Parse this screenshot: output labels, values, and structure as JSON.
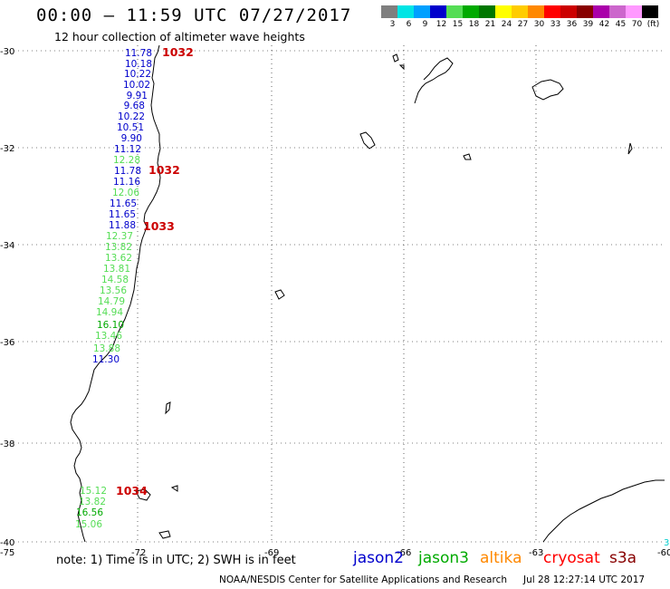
{
  "header": {
    "title": "00:00 – 11:59 UTC 07/27/2017",
    "subtitle": "12 hour collection of altimeter wave heights"
  },
  "colorbar": {
    "labels": [
      "3",
      "6",
      "9",
      "12",
      "15",
      "18",
      "21",
      "24",
      "27",
      "30",
      "33",
      "36",
      "39",
      "42",
      "45",
      "70",
      "(ft)"
    ],
    "colors": [
      "#7f7f7f",
      "#00e5e5",
      "#00a0ff",
      "#0000cc",
      "#55dd55",
      "#00aa00",
      "#007700",
      "#ffff00",
      "#ffcc00",
      "#ff8800",
      "#ff0000",
      "#cc0000",
      "#880000",
      "#aa00aa",
      "#cc66cc",
      "#ff99ff",
      "#000000"
    ]
  },
  "axes": {
    "lat_labels": [
      "-30",
      "-32",
      "-34",
      "-36",
      "-38",
      "-40"
    ],
    "lon_labels": [
      "-75",
      "-72",
      "-69",
      "-66",
      "-63",
      "-60"
    ],
    "lon_right_extra": "3"
  },
  "wave_heights": [
    {
      "value": "11.78",
      "color": "#0000cc"
    },
    {
      "value": "10.18",
      "color": "#0000cc"
    },
    {
      "value": "10.22",
      "color": "#0000cc"
    },
    {
      "value": "10.02",
      "color": "#0000cc"
    },
    {
      "value": "9.91",
      "color": "#0000cc"
    },
    {
      "value": "9.68",
      "color": "#0000cc"
    },
    {
      "value": "10.22",
      "color": "#0000cc"
    },
    {
      "value": "10.51",
      "color": "#0000cc"
    },
    {
      "value": "9.90",
      "color": "#0000cc"
    },
    {
      "value": "11.12",
      "color": "#0000cc"
    },
    {
      "value": "12.28",
      "color": "#55dd55"
    },
    {
      "value": "11.78",
      "color": "#0000cc"
    },
    {
      "value": "11.16",
      "color": "#0000cc"
    },
    {
      "value": "12.06",
      "color": "#55dd55"
    },
    {
      "value": "11.65",
      "color": "#0000cc"
    },
    {
      "value": "11.65",
      "color": "#0000cc"
    },
    {
      "value": "11.88",
      "color": "#0000cc"
    },
    {
      "value": "12.37",
      "color": "#55dd55"
    },
    {
      "value": "13.82",
      "color": "#55dd55"
    },
    {
      "value": "13.62",
      "color": "#55dd55"
    },
    {
      "value": "13.81",
      "color": "#55dd55"
    },
    {
      "value": "14.58",
      "color": "#55dd55"
    },
    {
      "value": "13.56",
      "color": "#55dd55"
    },
    {
      "value": "14.79",
      "color": "#55dd55"
    },
    {
      "value": "14.94",
      "color": "#55dd55"
    },
    {
      "value": "16.10",
      "color": "#00aa00"
    },
    {
      "value": "13.46",
      "color": "#55dd55"
    },
    {
      "value": "13.88",
      "color": "#55dd55"
    },
    {
      "value": "11.30",
      "color": "#0000cc"
    },
    {
      "value": "15.12",
      "color": "#55dd55"
    },
    {
      "value": "13.82",
      "color": "#55dd55"
    },
    {
      "value": "16.56",
      "color": "#00aa00"
    },
    {
      "value": "15.06",
      "color": "#55dd55"
    }
  ],
  "time_labels": [
    {
      "value": "1032",
      "color": "#cc0000"
    },
    {
      "value": "1032",
      "color": "#cc0000"
    },
    {
      "value": "1033",
      "color": "#cc0000"
    },
    {
      "value": "1034",
      "color": "#cc0000"
    }
  ],
  "footer": {
    "note": "note: 1) Time is in UTC; 2) SWH is in feet",
    "credit": "NOAA/NESDIS Center for Satellite Applications and Research",
    "timestamp": "Jul 28 12:27:14 UTC 2017"
  },
  "legend": [
    {
      "name": "jason2",
      "color": "#0000cc"
    },
    {
      "name": "jason3",
      "color": "#00aa00"
    },
    {
      "name": "altika",
      "color": "#ff8800"
    },
    {
      "name": "cryosat",
      "color": "#ff0000"
    },
    {
      "name": "s3a",
      "color": "#880000"
    }
  ]
}
